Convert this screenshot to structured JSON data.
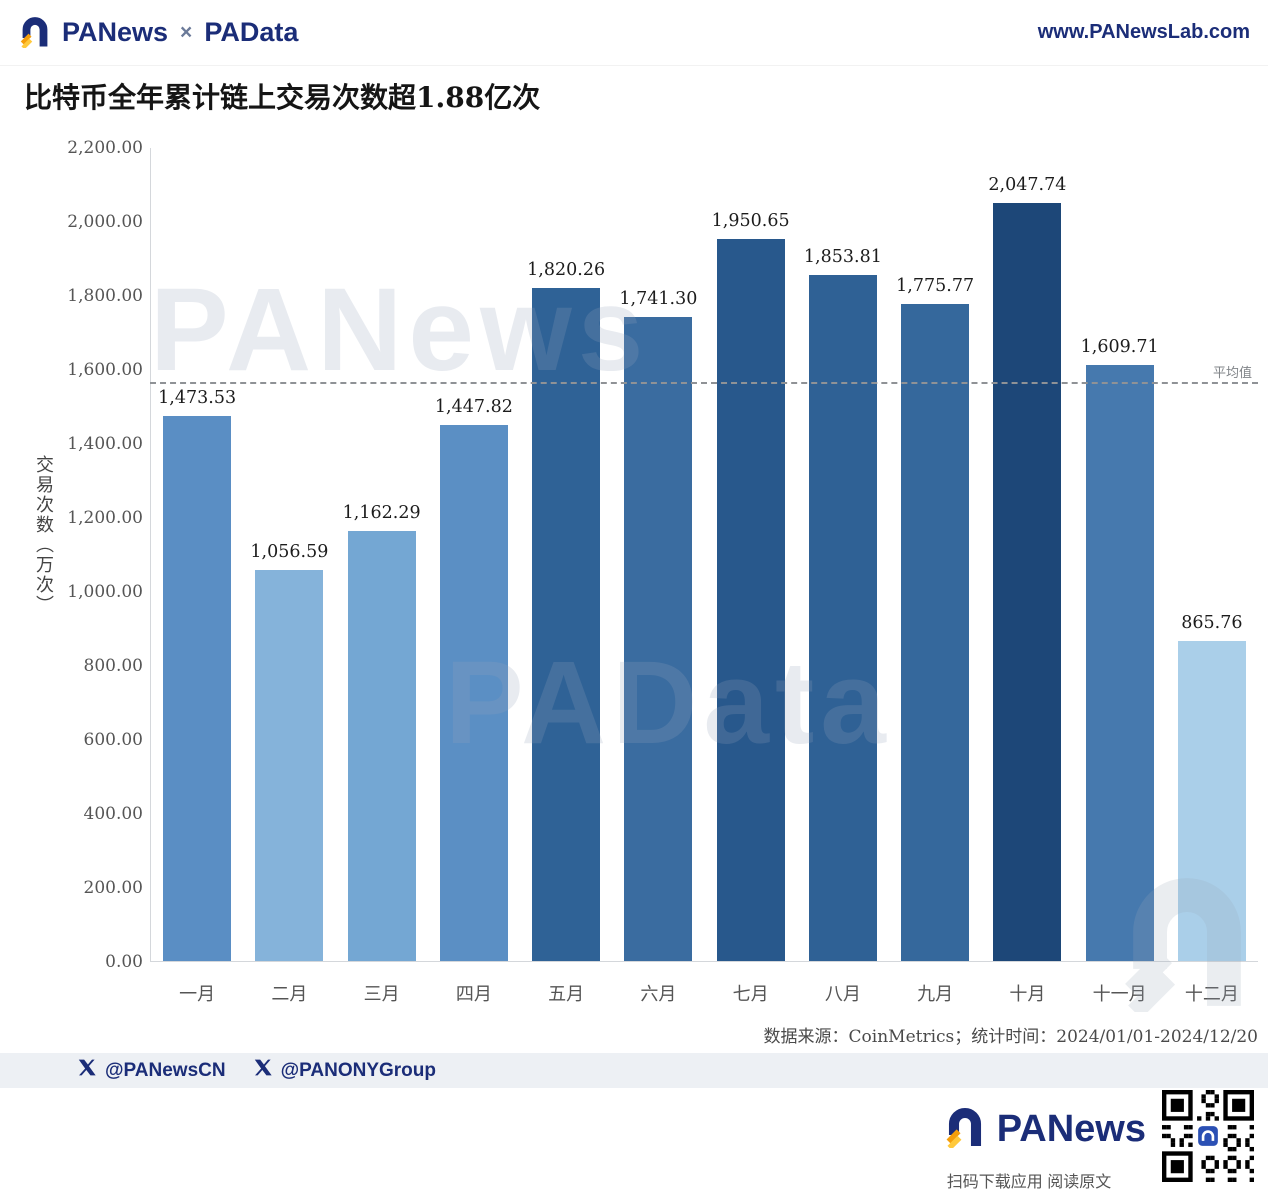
{
  "header": {
    "logo_text": "PANews",
    "logo_separator": "×",
    "logo_text2": "PAData",
    "website": "www.PANewsLab.com"
  },
  "title": "比特币全年累计链上交易次数超1.88亿次",
  "chart_data": {
    "type": "bar",
    "title": "比特币全年累计链上交易次数超1.88亿次",
    "xlabel": "",
    "ylabel": "交易次数（万次）",
    "ylim": [
      0,
      2200
    ],
    "ytick_step": 200,
    "yticks": [
      "2,200.00",
      "2,000.00",
      "1,800.00",
      "1,600.00",
      "1,400.00",
      "1,200.00",
      "1,000.00",
      "800.00",
      "600.00",
      "400.00",
      "200.00",
      "0.00"
    ],
    "categories": [
      "一月",
      "二月",
      "三月",
      "四月",
      "五月",
      "六月",
      "七月",
      "八月",
      "九月",
      "十月",
      "十一月",
      "十二月"
    ],
    "values": [
      1473.53,
      1056.59,
      1162.29,
      1447.82,
      1820.26,
      1741.3,
      1950.65,
      1853.81,
      1775.77,
      2047.74,
      1609.71,
      865.76
    ],
    "labels": [
      "1,473.53",
      "1,056.59",
      "1,162.29",
      "1,447.82",
      "1,820.26",
      "1,741.30",
      "1,950.65",
      "1,853.81",
      "1,775.77",
      "2,047.74",
      "1,609.71",
      "865.76"
    ],
    "colors": [
      "#5a8ec4",
      "#85b3da",
      "#74a7d3",
      "#5b8fc4",
      "#2f6296",
      "#3a6ca0",
      "#28588c",
      "#2f6195",
      "#35689c",
      "#1d4778",
      "#4679ae",
      "#aacfe9"
    ],
    "average": 1567.1,
    "average_label": "平均值",
    "grid": false,
    "legend": []
  },
  "source_line": "数据来源：CoinMetrics；统计时间：2024/01/01-2024/12/20",
  "watermarks": {
    "wm1": "PANews",
    "wm2": "PAData"
  },
  "social": {
    "handle1": "@PANewsCN",
    "handle2": "@PANONYGroup"
  },
  "footer": {
    "brand": "PANews",
    "caption": "扫码下载应用  阅读原文"
  }
}
